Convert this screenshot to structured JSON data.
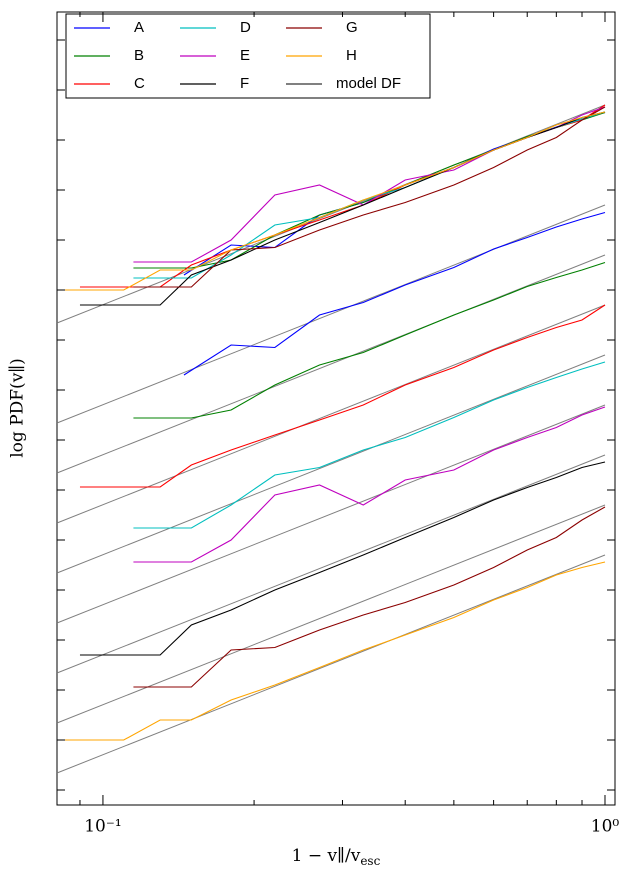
{
  "chart_data": {
    "type": "line",
    "xlabel": {
      "main": "1 − v∥/v",
      "sub": "esc"
    },
    "ylabel": "log PDF(v∥)",
    "log_x": true,
    "xlim": [
      0.081,
      1.047
    ],
    "ylim": [
      -0.3,
      15.56
    ],
    "xticks": [
      {
        "value": 0.1,
        "label": "10⁻¹"
      },
      {
        "value": 1,
        "label": "10⁰"
      }
    ],
    "xticks_minor": [
      0.09,
      0.2,
      0.3,
      0.4,
      0.5,
      0.6,
      0.7,
      0.8,
      0.9
    ],
    "yticks": [
      0,
      1,
      2,
      3,
      4,
      5,
      6,
      7,
      8,
      9,
      10,
      11,
      12,
      13,
      14,
      15
    ],
    "ytick_labels": false,
    "legend": "upper left",
    "series": [
      {
        "name": "A",
        "color": "#0000ff",
        "lines": [
          {
            "x": [
              0.145,
              0.18,
              0.22,
              0.27,
              0.33,
              0.4,
              0.5,
              0.6,
              0.7,
              0.8,
              0.9,
              1.0
            ],
            "values": [
              8.3,
              8.9,
              8.85,
              9.5,
              9.75,
              10.1,
              10.45,
              10.82,
              11.05,
              11.26,
              11.42,
              11.55
            ]
          },
          {
            "x": [
              0.145,
              0.18,
              0.22,
              0.27,
              0.33,
              0.4,
              0.5,
              0.6,
              0.7,
              0.8,
              0.9,
              1.0
            ],
            "values": [
              10.3,
              10.9,
              10.85,
              11.5,
              11.75,
              12.1,
              12.45,
              12.82,
              13.05,
              13.26,
              13.42,
              13.55
            ]
          }
        ]
      },
      {
        "name": "B",
        "color": "#008000",
        "lines": [
          {
            "x": [
              0.115,
              0.15,
              0.18,
              0.22,
              0.27,
              0.33,
              0.4,
              0.5,
              0.6,
              0.7,
              0.8,
              0.9,
              1.0
            ],
            "values": [
              7.44,
              7.44,
              7.6,
              8.1,
              8.5,
              8.75,
              9.1,
              9.5,
              9.8,
              10.07,
              10.25,
              10.4,
              10.55
            ]
          },
          {
            "x": [
              0.115,
              0.15,
              0.18,
              0.22,
              0.27,
              0.33,
              0.4,
              0.5,
              0.6,
              0.7,
              0.8,
              0.9,
              1.0
            ],
            "values": [
              10.44,
              10.44,
              10.6,
              11.1,
              11.5,
              11.75,
              12.1,
              12.5,
              12.8,
              13.07,
              13.25,
              13.4,
              13.55
            ]
          }
        ]
      },
      {
        "name": "C",
        "color": "#ff0000",
        "lines": [
          {
            "x": [
              0.09,
              0.13,
              0.15,
              0.18,
              0.22,
              0.27,
              0.33,
              0.4,
              0.5,
              0.6,
              0.7,
              0.8,
              0.9,
              1.0
            ],
            "values": [
              6.06,
              6.06,
              6.5,
              6.8,
              7.1,
              7.4,
              7.7,
              8.1,
              8.45,
              8.8,
              9.05,
              9.25,
              9.4,
              9.7
            ]
          },
          {
            "x": [
              0.09,
              0.13,
              0.15,
              0.18,
              0.22,
              0.27,
              0.33,
              0.4,
              0.5,
              0.6,
              0.7,
              0.8,
              0.9,
              1.0
            ],
            "values": [
              10.06,
              10.06,
              10.5,
              10.8,
              11.1,
              11.4,
              11.7,
              12.1,
              12.45,
              12.8,
              13.05,
              13.25,
              13.4,
              13.7
            ]
          }
        ]
      },
      {
        "name": "D",
        "color": "#00bfbf",
        "lines": [
          {
            "x": [
              0.115,
              0.15,
              0.18,
              0.22,
              0.27,
              0.33,
              0.4,
              0.5,
              0.6,
              0.7,
              0.8,
              0.9,
              1.0
            ],
            "values": [
              5.24,
              5.24,
              5.7,
              6.3,
              6.45,
              6.8,
              7.05,
              7.45,
              7.8,
              8.05,
              8.25,
              8.42,
              8.56
            ]
          },
          {
            "x": [
              0.115,
              0.15,
              0.18,
              0.22,
              0.27,
              0.33,
              0.4,
              0.5,
              0.6,
              0.7,
              0.8,
              0.9,
              1.0
            ],
            "values": [
              10.24,
              10.24,
              10.7,
              11.3,
              11.45,
              11.8,
              12.05,
              12.45,
              12.8,
              13.05,
              13.25,
              13.42,
              13.56
            ]
          }
        ]
      },
      {
        "name": "E",
        "color": "#bf00bf",
        "lines": [
          {
            "x": [
              0.115,
              0.15,
              0.18,
              0.22,
              0.27,
              0.33,
              0.4,
              0.5,
              0.6,
              0.7,
              0.8,
              0.9,
              1.0
            ],
            "values": [
              4.56,
              4.56,
              5.0,
              5.9,
              6.1,
              5.7,
              6.2,
              6.4,
              6.8,
              7.05,
              7.25,
              7.5,
              7.66
            ]
          },
          {
            "x": [
              0.115,
              0.15,
              0.18,
              0.22,
              0.27,
              0.33,
              0.4,
              0.5,
              0.6,
              0.7,
              0.8,
              0.9,
              1.0
            ],
            "values": [
              10.56,
              10.56,
              11.0,
              11.9,
              12.1,
              11.7,
              12.2,
              12.4,
              12.8,
              13.05,
              13.25,
              13.5,
              13.66
            ]
          }
        ]
      },
      {
        "name": "F",
        "color": "#000000",
        "lines": [
          {
            "x": [
              0.09,
              0.13,
              0.15,
              0.18,
              0.22,
              0.27,
              0.33,
              0.4,
              0.5,
              0.6,
              0.7,
              0.8,
              0.9,
              1.0
            ],
            "values": [
              2.7,
              2.7,
              3.3,
              3.6,
              4.0,
              4.35,
              4.7,
              5.05,
              5.45,
              5.8,
              6.05,
              6.25,
              6.45,
              6.56
            ]
          },
          {
            "x": [
              0.09,
              0.13,
              0.15,
              0.18,
              0.22,
              0.27,
              0.33,
              0.4,
              0.5,
              0.6,
              0.7,
              0.8,
              0.9,
              1.0
            ],
            "values": [
              9.7,
              9.7,
              10.3,
              10.6,
              11.0,
              11.35,
              11.7,
              12.05,
              12.45,
              12.8,
              13.05,
              13.25,
              13.45,
              13.56
            ]
          }
        ]
      },
      {
        "name": "G",
        "color": "#8b0000",
        "lines": [
          {
            "x": [
              0.115,
              0.15,
              0.18,
              0.22,
              0.27,
              0.33,
              0.4,
              0.5,
              0.6,
              0.7,
              0.8,
              0.9,
              1.0
            ],
            "values": [
              2.06,
              2.06,
              2.8,
              2.85,
              3.2,
              3.5,
              3.75,
              4.1,
              4.45,
              4.8,
              5.05,
              5.4,
              5.66
            ]
          },
          {
            "x": [
              0.115,
              0.15,
              0.18,
              0.22,
              0.27,
              0.33,
              0.4,
              0.5,
              0.6,
              0.7,
              0.8,
              0.9,
              1.0
            ],
            "values": [
              10.06,
              10.06,
              10.8,
              10.85,
              11.2,
              11.5,
              11.75,
              12.1,
              12.45,
              12.8,
              13.05,
              13.4,
              13.66
            ]
          }
        ]
      },
      {
        "name": "H",
        "color": "#ffa500",
        "lines": [
          {
            "x": [
              0.081,
              0.11,
              0.13,
              0.15,
              0.18,
              0.22,
              0.27,
              0.33,
              0.4,
              0.5,
              0.6,
              0.7,
              0.8,
              0.9,
              1.0
            ],
            "values": [
              1.0,
              1.0,
              1.4,
              1.4,
              1.8,
              2.1,
              2.45,
              2.8,
              3.1,
              3.45,
              3.8,
              4.05,
              4.3,
              4.45,
              4.56
            ]
          },
          {
            "x": [
              0.081,
              0.11,
              0.13,
              0.15,
              0.18,
              0.22,
              0.27,
              0.33,
              0.4,
              0.5,
              0.6,
              0.7,
              0.8,
              0.9,
              1.0
            ],
            "values": [
              10.0,
              10.0,
              10.4,
              10.4,
              10.8,
              11.1,
              11.45,
              11.8,
              12.1,
              12.45,
              12.8,
              13.05,
              13.3,
              13.45,
              13.56
            ]
          }
        ]
      },
      {
        "name": "model DF",
        "color": "#808080",
        "width": 2,
        "lines": [
          {
            "x": [
              0.081,
              1.0
            ],
            "values": [
              9.34,
              13.7
            ]
          },
          {
            "x": [
              0.081,
              1.0
            ],
            "values": [
              7.34,
              11.7
            ]
          },
          {
            "x": [
              0.081,
              1.0
            ],
            "values": [
              6.34,
              10.7
            ]
          },
          {
            "x": [
              0.081,
              1.0
            ],
            "values": [
              5.34,
              9.7
            ]
          },
          {
            "x": [
              0.081,
              1.0
            ],
            "values": [
              4.34,
              8.7
            ]
          },
          {
            "x": [
              0.081,
              1.0
            ],
            "values": [
              3.34,
              7.7
            ]
          },
          {
            "x": [
              0.081,
              1.0
            ],
            "values": [
              2.34,
              6.7
            ]
          },
          {
            "x": [
              0.081,
              1.0
            ],
            "values": [
              1.34,
              5.7
            ]
          },
          {
            "x": [
              0.081,
              1.0
            ],
            "values": [
              0.34,
              4.7
            ]
          }
        ]
      }
    ]
  }
}
